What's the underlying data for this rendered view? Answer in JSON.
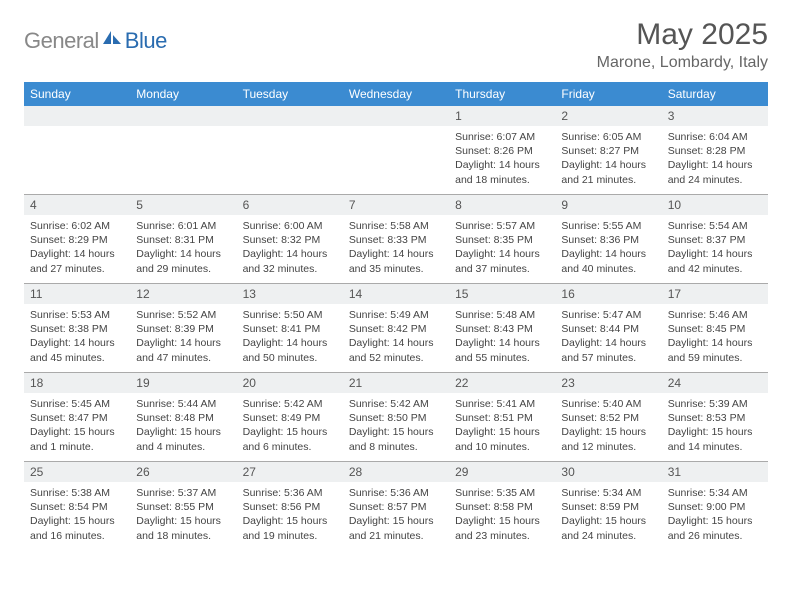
{
  "brand": {
    "part1": "General",
    "part2": "Blue"
  },
  "title": "May 2025",
  "location": "Marone, Lombardy, Italy",
  "colors": {
    "header_bg": "#3b8bd1",
    "header_fg": "#ffffff",
    "daynum_bg": "#eef0f1",
    "border": "#aaaaaa",
    "logo_blue": "#2a6cb0",
    "logo_gray": "#888888"
  },
  "day_labels": [
    "Sunday",
    "Monday",
    "Tuesday",
    "Wednesday",
    "Thursday",
    "Friday",
    "Saturday"
  ],
  "weeks": [
    [
      null,
      null,
      null,
      null,
      {
        "n": "1",
        "sr": "Sunrise: 6:07 AM",
        "ss": "Sunset: 8:26 PM",
        "dl1": "Daylight: 14 hours",
        "dl2": "and 18 minutes."
      },
      {
        "n": "2",
        "sr": "Sunrise: 6:05 AM",
        "ss": "Sunset: 8:27 PM",
        "dl1": "Daylight: 14 hours",
        "dl2": "and 21 minutes."
      },
      {
        "n": "3",
        "sr": "Sunrise: 6:04 AM",
        "ss": "Sunset: 8:28 PM",
        "dl1": "Daylight: 14 hours",
        "dl2": "and 24 minutes."
      }
    ],
    [
      {
        "n": "4",
        "sr": "Sunrise: 6:02 AM",
        "ss": "Sunset: 8:29 PM",
        "dl1": "Daylight: 14 hours",
        "dl2": "and 27 minutes."
      },
      {
        "n": "5",
        "sr": "Sunrise: 6:01 AM",
        "ss": "Sunset: 8:31 PM",
        "dl1": "Daylight: 14 hours",
        "dl2": "and 29 minutes."
      },
      {
        "n": "6",
        "sr": "Sunrise: 6:00 AM",
        "ss": "Sunset: 8:32 PM",
        "dl1": "Daylight: 14 hours",
        "dl2": "and 32 minutes."
      },
      {
        "n": "7",
        "sr": "Sunrise: 5:58 AM",
        "ss": "Sunset: 8:33 PM",
        "dl1": "Daylight: 14 hours",
        "dl2": "and 35 minutes."
      },
      {
        "n": "8",
        "sr": "Sunrise: 5:57 AM",
        "ss": "Sunset: 8:35 PM",
        "dl1": "Daylight: 14 hours",
        "dl2": "and 37 minutes."
      },
      {
        "n": "9",
        "sr": "Sunrise: 5:55 AM",
        "ss": "Sunset: 8:36 PM",
        "dl1": "Daylight: 14 hours",
        "dl2": "and 40 minutes."
      },
      {
        "n": "10",
        "sr": "Sunrise: 5:54 AM",
        "ss": "Sunset: 8:37 PM",
        "dl1": "Daylight: 14 hours",
        "dl2": "and 42 minutes."
      }
    ],
    [
      {
        "n": "11",
        "sr": "Sunrise: 5:53 AM",
        "ss": "Sunset: 8:38 PM",
        "dl1": "Daylight: 14 hours",
        "dl2": "and 45 minutes."
      },
      {
        "n": "12",
        "sr": "Sunrise: 5:52 AM",
        "ss": "Sunset: 8:39 PM",
        "dl1": "Daylight: 14 hours",
        "dl2": "and 47 minutes."
      },
      {
        "n": "13",
        "sr": "Sunrise: 5:50 AM",
        "ss": "Sunset: 8:41 PM",
        "dl1": "Daylight: 14 hours",
        "dl2": "and 50 minutes."
      },
      {
        "n": "14",
        "sr": "Sunrise: 5:49 AM",
        "ss": "Sunset: 8:42 PM",
        "dl1": "Daylight: 14 hours",
        "dl2": "and 52 minutes."
      },
      {
        "n": "15",
        "sr": "Sunrise: 5:48 AM",
        "ss": "Sunset: 8:43 PM",
        "dl1": "Daylight: 14 hours",
        "dl2": "and 55 minutes."
      },
      {
        "n": "16",
        "sr": "Sunrise: 5:47 AM",
        "ss": "Sunset: 8:44 PM",
        "dl1": "Daylight: 14 hours",
        "dl2": "and 57 minutes."
      },
      {
        "n": "17",
        "sr": "Sunrise: 5:46 AM",
        "ss": "Sunset: 8:45 PM",
        "dl1": "Daylight: 14 hours",
        "dl2": "and 59 minutes."
      }
    ],
    [
      {
        "n": "18",
        "sr": "Sunrise: 5:45 AM",
        "ss": "Sunset: 8:47 PM",
        "dl1": "Daylight: 15 hours",
        "dl2": "and 1 minute."
      },
      {
        "n": "19",
        "sr": "Sunrise: 5:44 AM",
        "ss": "Sunset: 8:48 PM",
        "dl1": "Daylight: 15 hours",
        "dl2": "and 4 minutes."
      },
      {
        "n": "20",
        "sr": "Sunrise: 5:42 AM",
        "ss": "Sunset: 8:49 PM",
        "dl1": "Daylight: 15 hours",
        "dl2": "and 6 minutes."
      },
      {
        "n": "21",
        "sr": "Sunrise: 5:42 AM",
        "ss": "Sunset: 8:50 PM",
        "dl1": "Daylight: 15 hours",
        "dl2": "and 8 minutes."
      },
      {
        "n": "22",
        "sr": "Sunrise: 5:41 AM",
        "ss": "Sunset: 8:51 PM",
        "dl1": "Daylight: 15 hours",
        "dl2": "and 10 minutes."
      },
      {
        "n": "23",
        "sr": "Sunrise: 5:40 AM",
        "ss": "Sunset: 8:52 PM",
        "dl1": "Daylight: 15 hours",
        "dl2": "and 12 minutes."
      },
      {
        "n": "24",
        "sr": "Sunrise: 5:39 AM",
        "ss": "Sunset: 8:53 PM",
        "dl1": "Daylight: 15 hours",
        "dl2": "and 14 minutes."
      }
    ],
    [
      {
        "n": "25",
        "sr": "Sunrise: 5:38 AM",
        "ss": "Sunset: 8:54 PM",
        "dl1": "Daylight: 15 hours",
        "dl2": "and 16 minutes."
      },
      {
        "n": "26",
        "sr": "Sunrise: 5:37 AM",
        "ss": "Sunset: 8:55 PM",
        "dl1": "Daylight: 15 hours",
        "dl2": "and 18 minutes."
      },
      {
        "n": "27",
        "sr": "Sunrise: 5:36 AM",
        "ss": "Sunset: 8:56 PM",
        "dl1": "Daylight: 15 hours",
        "dl2": "and 19 minutes."
      },
      {
        "n": "28",
        "sr": "Sunrise: 5:36 AM",
        "ss": "Sunset: 8:57 PM",
        "dl1": "Daylight: 15 hours",
        "dl2": "and 21 minutes."
      },
      {
        "n": "29",
        "sr": "Sunrise: 5:35 AM",
        "ss": "Sunset: 8:58 PM",
        "dl1": "Daylight: 15 hours",
        "dl2": "and 23 minutes."
      },
      {
        "n": "30",
        "sr": "Sunrise: 5:34 AM",
        "ss": "Sunset: 8:59 PM",
        "dl1": "Daylight: 15 hours",
        "dl2": "and 24 minutes."
      },
      {
        "n": "31",
        "sr": "Sunrise: 5:34 AM",
        "ss": "Sunset: 9:00 PM",
        "dl1": "Daylight: 15 hours",
        "dl2": "and 26 minutes."
      }
    ]
  ]
}
